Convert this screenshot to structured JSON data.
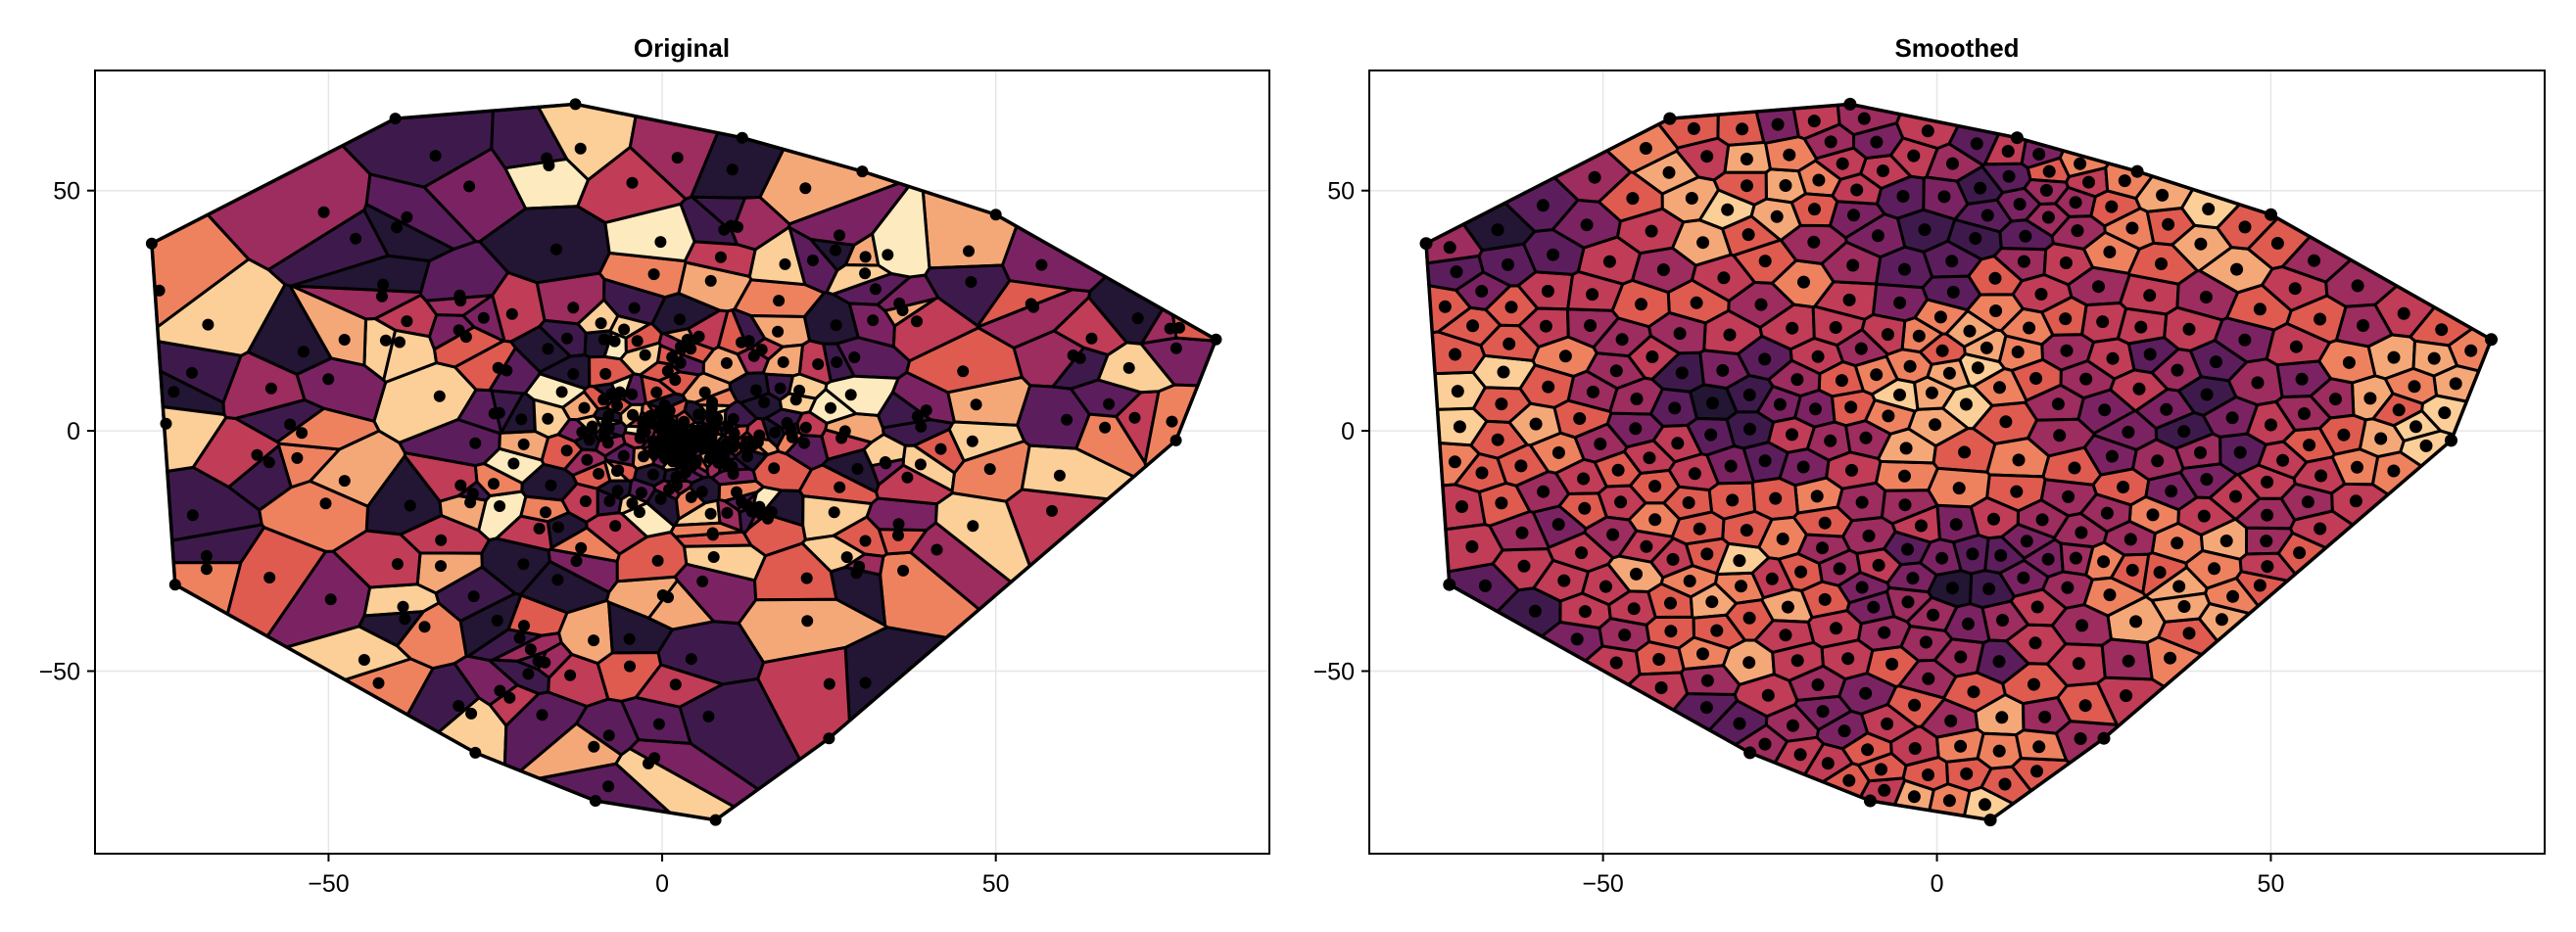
{
  "chart_data": [
    {
      "type": "voronoi",
      "title": "Original",
      "xlim": [
        -85,
        91
      ],
      "ylim": [
        -88,
        75
      ],
      "xticks": [
        -50,
        0,
        50
      ],
      "xtick_labels": [
        "−50",
        "0",
        "50"
      ],
      "yticks": [
        -50,
        0,
        50
      ],
      "ytick_labels": [
        "−50",
        "0",
        "50"
      ],
      "grid": true,
      "colormap": [
        "#231534",
        "#3e1a4c",
        "#5c1d5d",
        "#7b2362",
        "#9d2c5f",
        "#c13c56",
        "#df5b4f",
        "#ee825f",
        "#f5a877",
        "#fbcf97",
        "#fdeabf"
      ],
      "cell_edge_color": "#000000",
      "point_color": "#000000",
      "hull": [
        [
          -76.5,
          39
        ],
        [
          -40,
          65
        ],
        [
          -13,
          68
        ],
        [
          12,
          61
        ],
        [
          30,
          54
        ],
        [
          50,
          45
        ],
        [
          83,
          19
        ],
        [
          77,
          -2
        ],
        [
          25,
          -64
        ],
        [
          8,
          -81
        ],
        [
          -10,
          -77
        ],
        [
          -28,
          -67
        ],
        [
          -73,
          -32
        ]
      ],
      "distribution": "dense-center",
      "n_points": 400,
      "seed": 7
    },
    {
      "type": "voronoi",
      "title": "Smoothed",
      "xlim": [
        -85,
        91
      ],
      "ylim": [
        -88,
        75
      ],
      "xticks": [
        -50,
        0,
        50
      ],
      "xtick_labels": [
        "−50",
        "0",
        "50"
      ],
      "yticks": [
        -50,
        0,
        50
      ],
      "ytick_labels": [
        "−50",
        "0",
        "50"
      ],
      "grid": true,
      "colormap": [
        "#231534",
        "#3e1a4c",
        "#5c1d5d",
        "#7b2362",
        "#9d2c5f",
        "#c13c56",
        "#df5b4f",
        "#ee825f",
        "#f5a877",
        "#fbcf97",
        "#fdeabf"
      ],
      "cell_edge_color": "#000000",
      "point_color": "#000000",
      "hull": [
        [
          -76.5,
          39
        ],
        [
          -40,
          65
        ],
        [
          -13,
          68
        ],
        [
          12,
          61
        ],
        [
          30,
          54
        ],
        [
          50,
          45
        ],
        [
          83,
          19
        ],
        [
          77,
          -2
        ],
        [
          25,
          -64
        ],
        [
          8,
          -81
        ],
        [
          -10,
          -77
        ],
        [
          -28,
          -67
        ],
        [
          -73,
          -32
        ]
      ],
      "distribution": "uniform-relaxed",
      "n_points": 400,
      "seed": 11
    }
  ]
}
